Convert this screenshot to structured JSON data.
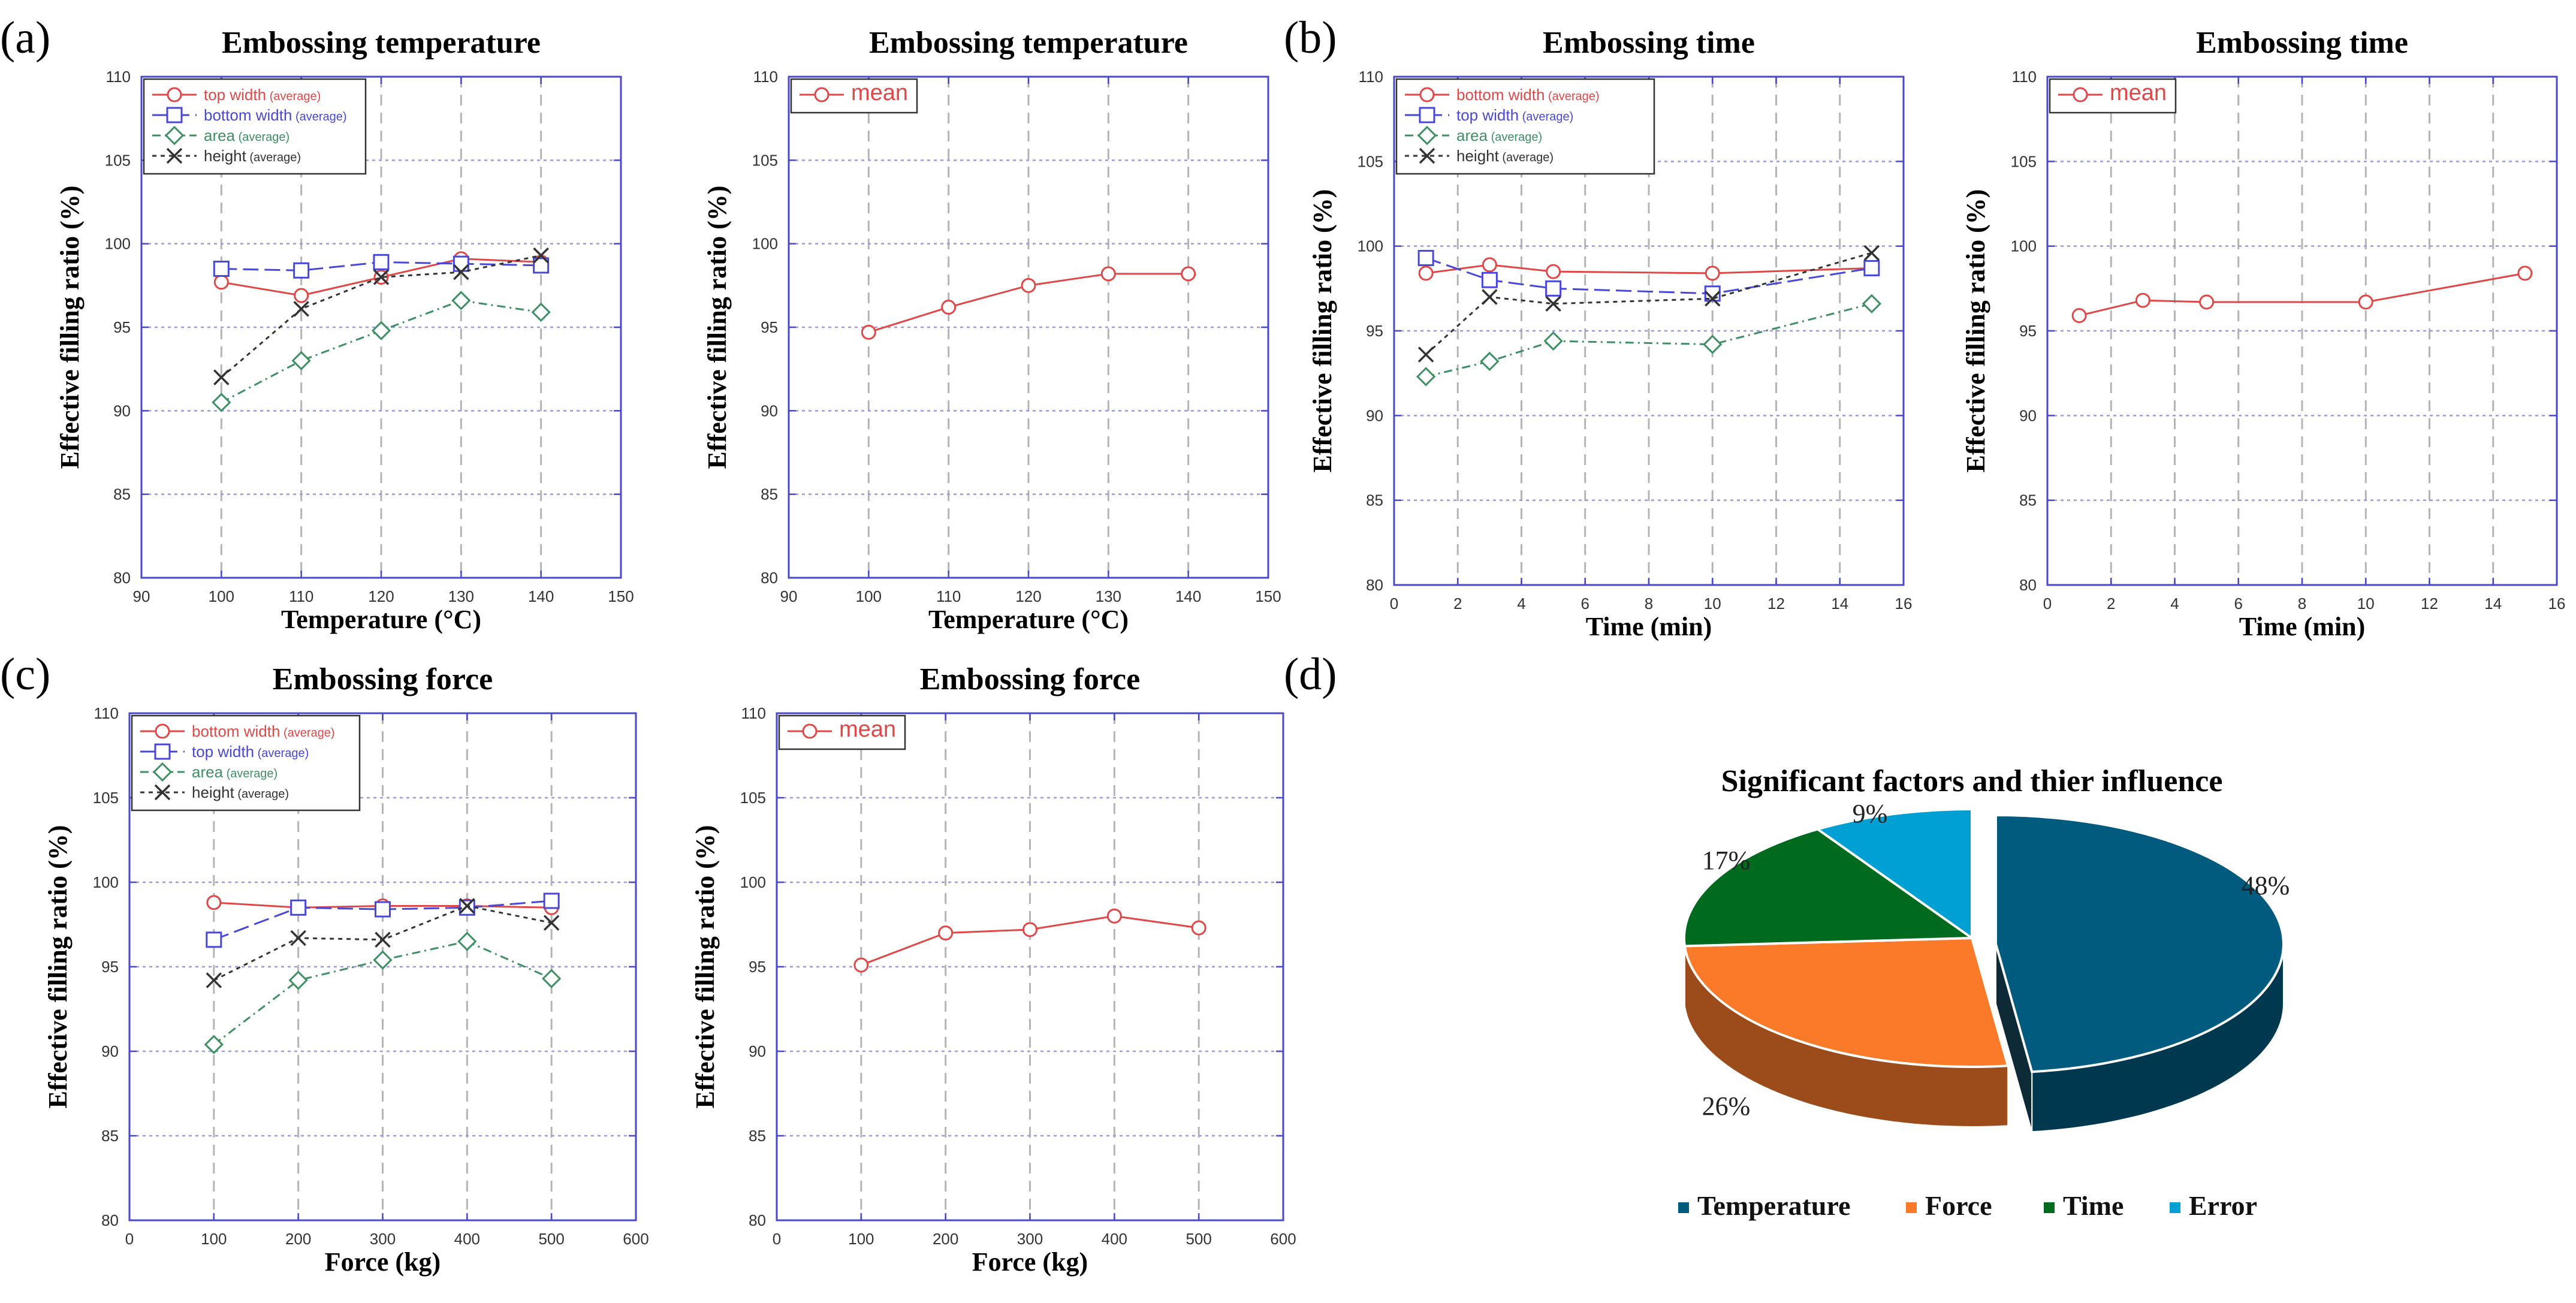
{
  "colors": {
    "red": "#e04848",
    "blue": "#4848d8",
    "green": "#3f8f65",
    "black": "#333333",
    "frame": "#4a4ac8",
    "grid_h": "#9a9adc",
    "grid_v": "#b4b4b4",
    "pie_temperature": "#005b7f",
    "pie_force": "#fb7a2a",
    "pie_time": "#006b1e",
    "pie_error": "#009fd4"
  },
  "panel_labels": [
    "(a)",
    "(b)",
    "(c)",
    "(d)"
  ],
  "legend_average_suffix": "(average)",
  "pie_data_labels": [
    "48%",
    "26%",
    "17%",
    "9%"
  ],
  "chart_data": [
    {
      "type": "line",
      "title": "Embossing temperature",
      "xlabel": "Temperature (°C)",
      "ylabel": "Effective filling ratio (%)",
      "xlim": [
        90,
        150
      ],
      "xticks": [
        90,
        100,
        110,
        120,
        130,
        140,
        150
      ],
      "ylim": [
        80,
        110
      ],
      "yticks": [
        80,
        85,
        90,
        95,
        100,
        105,
        110
      ],
      "x": [
        100,
        110,
        120,
        130,
        140
      ],
      "series": [
        {
          "name": "top width",
          "avg": true,
          "marker": "circle",
          "color": "red",
          "dash": "solid",
          "values": [
            97.7,
            96.9,
            98.0,
            99.1,
            98.9
          ]
        },
        {
          "name": "bottom width",
          "avg": true,
          "marker": "square",
          "color": "blue",
          "dash": "longdash",
          "values": [
            98.5,
            98.4,
            98.9,
            98.8,
            98.7
          ]
        },
        {
          "name": "area",
          "avg": true,
          "marker": "diamond",
          "color": "green",
          "dash": "dashdot",
          "values": [
            90.5,
            93.0,
            94.8,
            96.6,
            95.9
          ]
        },
        {
          "name": "height",
          "avg": true,
          "marker": "x",
          "color": "black",
          "dash": "dotted",
          "values": [
            92.0,
            96.1,
            98.0,
            98.3,
            99.3
          ]
        }
      ]
    },
    {
      "type": "line",
      "title": "Embossing temperature",
      "xlabel": "Temperature (°C)",
      "ylabel": "Effective filling ratio (%)",
      "xlim": [
        90,
        150
      ],
      "xticks": [
        90,
        100,
        110,
        120,
        130,
        140,
        150
      ],
      "ylim": [
        80,
        110
      ],
      "yticks": [
        80,
        85,
        90,
        95,
        100,
        105,
        110
      ],
      "x": [
        100,
        110,
        120,
        130,
        140
      ],
      "series": [
        {
          "name": "mean",
          "avg": false,
          "marker": "circle",
          "color": "red",
          "dash": "solid",
          "values": [
            94.7,
            96.2,
            97.5,
            98.2,
            98.2
          ]
        }
      ]
    },
    {
      "type": "line",
      "title": "Embossing time",
      "xlabel": "Time (min)",
      "ylabel": "Effective filling ratio (%)",
      "xlim": [
        0,
        16
      ],
      "xticks": [
        0,
        2,
        4,
        6,
        8,
        10,
        12,
        14,
        16
      ],
      "ylim": [
        80,
        110
      ],
      "yticks": [
        80,
        85,
        90,
        95,
        100,
        105,
        110
      ],
      "x": [
        1,
        3,
        5,
        10,
        15
      ],
      "series": [
        {
          "name": "bottom width",
          "avg": true,
          "marker": "circle",
          "color": "red",
          "dash": "solid",
          "values": [
            98.4,
            98.9,
            98.5,
            98.4,
            98.7
          ]
        },
        {
          "name": "top width",
          "avg": true,
          "marker": "square",
          "color": "blue",
          "dash": "longdash",
          "values": [
            99.3,
            98.0,
            97.5,
            97.2,
            98.7
          ]
        },
        {
          "name": "area",
          "avg": true,
          "marker": "diamond",
          "color": "green",
          "dash": "dashdot",
          "values": [
            92.3,
            93.2,
            94.4,
            94.2,
            96.6
          ]
        },
        {
          "name": "height",
          "avg": true,
          "marker": "x",
          "color": "black",
          "dash": "dotted",
          "values": [
            93.6,
            97.0,
            96.6,
            96.9,
            99.6
          ]
        }
      ]
    },
    {
      "type": "line",
      "title": "Embossing time",
      "xlabel": "Time (min)",
      "ylabel": "Effective filling ratio (%)",
      "xlim": [
        0,
        16
      ],
      "xticks": [
        0,
        2,
        4,
        6,
        8,
        10,
        12,
        14,
        16
      ],
      "ylim": [
        80,
        110
      ],
      "yticks": [
        80,
        85,
        90,
        95,
        100,
        105,
        110
      ],
      "x": [
        1,
        3,
        5,
        10,
        15
      ],
      "series": [
        {
          "name": "mean",
          "avg": false,
          "marker": "circle",
          "color": "red",
          "dash": "solid",
          "values": [
            95.9,
            96.8,
            96.7,
            96.7,
            98.4
          ]
        }
      ]
    },
    {
      "type": "line",
      "title": "Embossing force",
      "xlabel": "Force (kg)",
      "ylabel": "Effective filling ratio (%)",
      "xlim": [
        0,
        600
      ],
      "xticks": [
        0,
        100,
        200,
        300,
        400,
        500,
        600
      ],
      "ylim": [
        80,
        110
      ],
      "yticks": [
        80,
        85,
        90,
        95,
        100,
        105,
        110
      ],
      "x": [
        100,
        200,
        300,
        400,
        500
      ],
      "series": [
        {
          "name": "bottom width",
          "avg": true,
          "marker": "circle",
          "color": "red",
          "dash": "solid",
          "values": [
            98.8,
            98.5,
            98.6,
            98.6,
            98.5
          ]
        },
        {
          "name": "top width",
          "avg": true,
          "marker": "square",
          "color": "blue",
          "dash": "longdash",
          "values": [
            96.6,
            98.5,
            98.4,
            98.5,
            98.9
          ]
        },
        {
          "name": "area",
          "avg": true,
          "marker": "diamond",
          "color": "green",
          "dash": "dashdot",
          "values": [
            90.4,
            94.2,
            95.4,
            96.5,
            94.3
          ]
        },
        {
          "name": "height",
          "avg": true,
          "marker": "x",
          "color": "black",
          "dash": "dotted",
          "values": [
            94.2,
            96.7,
            96.6,
            98.6,
            97.6
          ]
        }
      ]
    },
    {
      "type": "line",
      "title": "Embossing force",
      "xlabel": "Force (kg)",
      "ylabel": "Effective filling ratio (%)",
      "xlim": [
        0,
        600
      ],
      "xticks": [
        0,
        100,
        200,
        300,
        400,
        500,
        600
      ],
      "ylim": [
        80,
        110
      ],
      "yticks": [
        80,
        85,
        90,
        95,
        100,
        105,
        110
      ],
      "x": [
        100,
        200,
        300,
        400,
        500
      ],
      "series": [
        {
          "name": "mean",
          "avg": false,
          "marker": "circle",
          "color": "red",
          "dash": "solid",
          "values": [
            95.1,
            97.0,
            97.2,
            98.0,
            97.3
          ]
        }
      ]
    },
    {
      "type": "pie",
      "title": "Significant factors and  thier influence",
      "categories": [
        "Temperature",
        "Force",
        "Time",
        "Error"
      ],
      "values": [
        48,
        26,
        17,
        9
      ],
      "legend": "bottom"
    }
  ]
}
